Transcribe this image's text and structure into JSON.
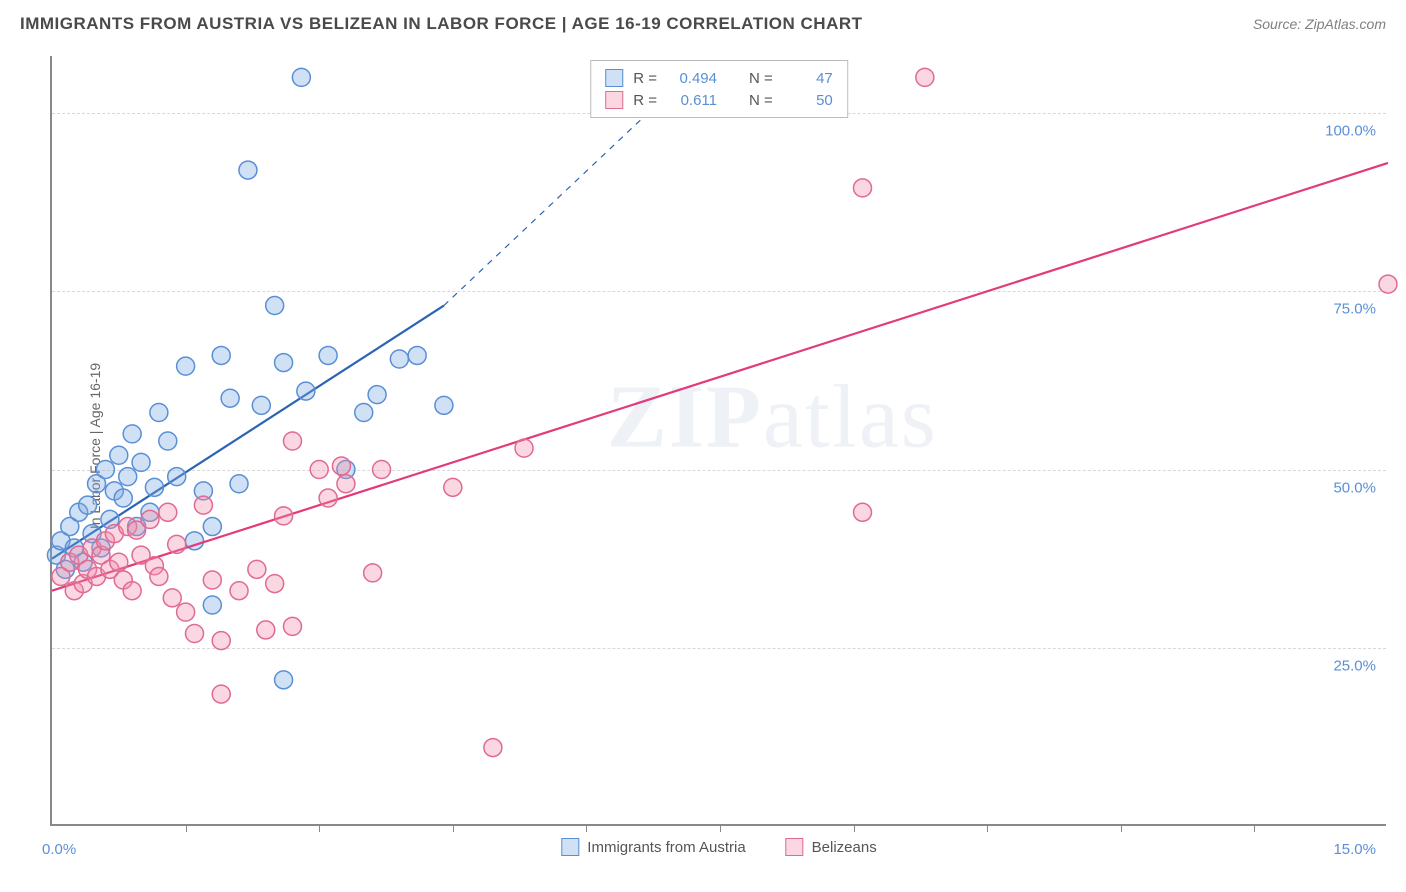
{
  "header": {
    "title": "IMMIGRANTS FROM AUSTRIA VS BELIZEAN IN LABOR FORCE | AGE 16-19 CORRELATION CHART",
    "source": "Source: ZipAtlas.com"
  },
  "chart": {
    "type": "scatter",
    "ylabel": "In Labor Force | Age 16-19",
    "xlim": [
      0,
      15
    ],
    "ylim": [
      0,
      108
    ],
    "yticks": [
      25,
      50,
      75,
      100
    ],
    "ytick_labels": [
      "25.0%",
      "50.0%",
      "75.0%",
      "100.0%"
    ],
    "xtick_positions": [
      1.5,
      3.0,
      4.5,
      6.0,
      7.5,
      9.0,
      10.5,
      12.0,
      13.5
    ],
    "xtick_labels": {
      "left": "0.0%",
      "right": "15.0%"
    },
    "background_color": "#ffffff",
    "grid_color": "#d8d8d8",
    "axis_color": "#888888",
    "marker_radius": 9,
    "marker_stroke_width": 1.5,
    "series": [
      {
        "id": "austria",
        "label": "Immigrants from Austria",
        "fill": "rgba(120,170,225,0.35)",
        "stroke": "#5a8fd6",
        "r_value": "0.494",
        "n_value": "47",
        "trend": {
          "x1": 0,
          "y1": 37.5,
          "x2": 4.4,
          "y2": 73,
          "color": "#2b63b5",
          "width": 2.2,
          "dash_x2": 7.2,
          "dash_y2": 106
        },
        "points": [
          [
            0.05,
            38
          ],
          [
            0.1,
            40
          ],
          [
            0.15,
            36
          ],
          [
            0.2,
            42
          ],
          [
            0.25,
            39
          ],
          [
            0.3,
            44
          ],
          [
            0.35,
            37
          ],
          [
            0.4,
            45
          ],
          [
            0.45,
            41
          ],
          [
            0.5,
            48
          ],
          [
            0.55,
            39
          ],
          [
            0.6,
            50
          ],
          [
            0.65,
            43
          ],
          [
            0.7,
            47
          ],
          [
            0.75,
            52
          ],
          [
            0.8,
            46
          ],
          [
            0.85,
            49
          ],
          [
            0.9,
            55
          ],
          [
            0.95,
            42
          ],
          [
            1.0,
            51
          ],
          [
            1.1,
            44
          ],
          [
            1.15,
            47.5
          ],
          [
            1.2,
            58
          ],
          [
            1.3,
            54
          ],
          [
            1.4,
            49
          ],
          [
            1.5,
            64.5
          ],
          [
            1.6,
            40
          ],
          [
            1.7,
            47
          ],
          [
            1.8,
            42
          ],
          [
            1.8,
            31
          ],
          [
            1.9,
            66
          ],
          [
            2.0,
            60
          ],
          [
            2.1,
            48
          ],
          [
            2.2,
            92
          ],
          [
            2.35,
            59
          ],
          [
            2.5,
            73
          ],
          [
            2.6,
            65
          ],
          [
            2.6,
            20.5
          ],
          [
            2.8,
            105
          ],
          [
            2.85,
            61
          ],
          [
            3.1,
            66
          ],
          [
            3.3,
            50
          ],
          [
            3.5,
            58
          ],
          [
            3.65,
            60.5
          ],
          [
            3.9,
            65.5
          ],
          [
            4.1,
            66
          ],
          [
            4.4,
            59
          ]
        ]
      },
      {
        "id": "belizeans",
        "label": "Belizeans",
        "fill": "rgba(240,140,170,0.35)",
        "stroke": "#e06a94",
        "r_value": "0.611",
        "n_value": "50",
        "trend": {
          "x1": 0,
          "y1": 33,
          "x2": 15,
          "y2": 93,
          "color": "#e23a7a",
          "width": 2.2
        },
        "points": [
          [
            0.1,
            35
          ],
          [
            0.2,
            37
          ],
          [
            0.25,
            33
          ],
          [
            0.3,
            38
          ],
          [
            0.35,
            34
          ],
          [
            0.4,
            36
          ],
          [
            0.45,
            39
          ],
          [
            0.5,
            35
          ],
          [
            0.55,
            38
          ],
          [
            0.6,
            40
          ],
          [
            0.65,
            36
          ],
          [
            0.7,
            41
          ],
          [
            0.75,
            37
          ],
          [
            0.8,
            34.5
          ],
          [
            0.85,
            42
          ],
          [
            0.9,
            33
          ],
          [
            0.95,
            41.5
          ],
          [
            1.0,
            38
          ],
          [
            1.1,
            43
          ],
          [
            1.15,
            36.5
          ],
          [
            1.2,
            35
          ],
          [
            1.3,
            44
          ],
          [
            1.35,
            32
          ],
          [
            1.4,
            39.5
          ],
          [
            1.5,
            30
          ],
          [
            1.6,
            27
          ],
          [
            1.7,
            45
          ],
          [
            1.8,
            34.5
          ],
          [
            1.9,
            26
          ],
          [
            1.9,
            18.5
          ],
          [
            2.1,
            33
          ],
          [
            2.3,
            36
          ],
          [
            2.4,
            27.5
          ],
          [
            2.5,
            34
          ],
          [
            2.6,
            43.5
          ],
          [
            2.7,
            28
          ],
          [
            2.7,
            54
          ],
          [
            3.0,
            50
          ],
          [
            3.1,
            46
          ],
          [
            3.25,
            50.5
          ],
          [
            3.3,
            48
          ],
          [
            3.6,
            35.5
          ],
          [
            3.7,
            50
          ],
          [
            4.5,
            47.5
          ],
          [
            4.95,
            11
          ],
          [
            5.3,
            53
          ],
          [
            9.1,
            89.5
          ],
          [
            9.1,
            44
          ],
          [
            9.8,
            105
          ],
          [
            15.0,
            76
          ]
        ]
      }
    ]
  },
  "legend_top": {
    "r_label": "R =",
    "n_label": "N ="
  },
  "watermark": {
    "zip": "ZIP",
    "atlas": "atlas"
  }
}
